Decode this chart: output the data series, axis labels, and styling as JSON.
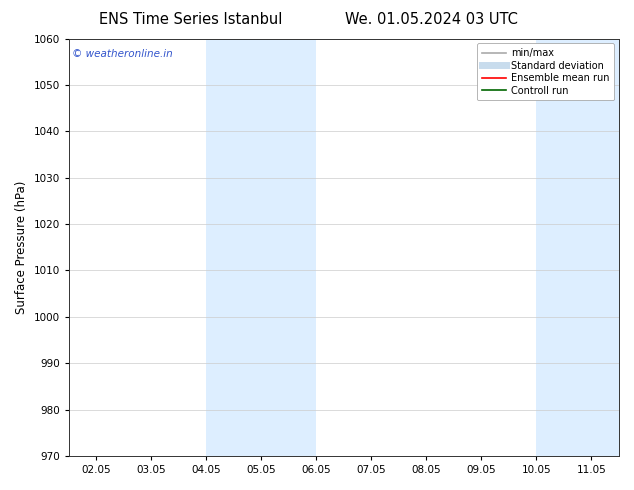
{
  "title_left": "ENS Time Series Istanbul",
  "title_right": "We. 01.05.2024 03 UTC",
  "ylabel": "Surface Pressure (hPa)",
  "ylim": [
    970,
    1060
  ],
  "yticks": [
    970,
    980,
    990,
    1000,
    1010,
    1020,
    1030,
    1040,
    1050,
    1060
  ],
  "xtick_labels": [
    "02.05",
    "03.05",
    "04.05",
    "05.05",
    "06.05",
    "07.05",
    "08.05",
    "09.05",
    "10.05",
    "11.05"
  ],
  "watermark": "© weatheronline.in",
  "watermark_color": "#3355cc",
  "bg_color": "#ffffff",
  "plot_bg_color": "#ffffff",
  "shaded_regions": [
    {
      "xstart": 2.0,
      "xend": 4.0,
      "color": "#ddeeff"
    },
    {
      "xstart": 8.0,
      "xend": 9.5,
      "color": "#ddeeff"
    }
  ],
  "legend_items": [
    {
      "label": "min/max",
      "color": "#aaaaaa",
      "lw": 1.2,
      "style": "solid"
    },
    {
      "label": "Standard deviation",
      "color": "#c8dced",
      "lw": 5,
      "style": "solid"
    },
    {
      "label": "Ensemble mean run",
      "color": "#ff0000",
      "lw": 1.2,
      "style": "solid"
    },
    {
      "label": "Controll run",
      "color": "#006600",
      "lw": 1.2,
      "style": "solid"
    }
  ],
  "grid_color": "#cccccc",
  "spine_color": "#333333",
  "title_fontsize": 10.5,
  "tick_fontsize": 7.5,
  "ylabel_fontsize": 8.5,
  "watermark_fontsize": 7.5,
  "legend_fontsize": 7
}
